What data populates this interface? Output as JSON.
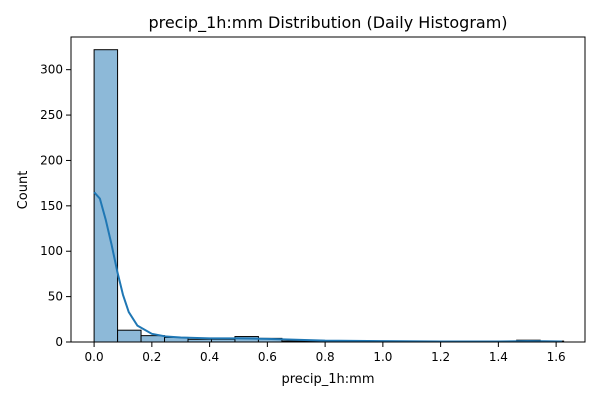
{
  "chart_data": {
    "type": "bar",
    "title": "precip_1h:mm Distribution (Daily Histogram)",
    "xlabel": "precip_1h:mm",
    "ylabel": "Count",
    "xlim": [
      -0.08,
      1.7
    ],
    "ylim": [
      0,
      336
    ],
    "xticks": [
      0.0,
      0.2,
      0.4,
      0.6,
      0.8,
      1.0,
      1.2,
      1.4,
      1.6
    ],
    "xtick_labels": [
      "0.0",
      "0.2",
      "0.4",
      "0.6",
      "0.8",
      "1.0",
      "1.2",
      "1.4",
      "1.6"
    ],
    "yticks": [
      0,
      50,
      100,
      150,
      200,
      250,
      300
    ],
    "ytick_labels": [
      "0",
      "50",
      "100",
      "150",
      "200",
      "250",
      "300"
    ],
    "bin_edges": [
      0.0,
      0.0813,
      0.1626,
      0.2439,
      0.3252,
      0.4065,
      0.4878,
      0.5691,
      0.6504,
      0.7317,
      0.813,
      0.8943,
      0.9756,
      1.0569,
      1.1382,
      1.2195,
      1.3008,
      1.3821,
      1.4634,
      1.5447,
      1.626
    ],
    "counts": [
      322,
      13,
      7,
      5,
      3,
      3,
      6,
      4,
      1,
      1,
      0,
      0,
      0,
      0,
      0,
      0,
      0,
      0,
      2,
      1
    ],
    "kde": {
      "x": [
        0.0,
        0.02,
        0.04,
        0.06,
        0.08,
        0.1,
        0.12,
        0.15,
        0.2,
        0.25,
        0.3,
        0.4,
        0.5,
        0.6,
        0.7,
        0.8,
        1.0,
        1.2,
        1.4,
        1.5,
        1.56,
        1.62
      ],
      "y": [
        165,
        158,
        135,
        108,
        78,
        52,
        33,
        18,
        9,
        6,
        5,
        4,
        4,
        3.5,
        2.5,
        1.5,
        1,
        0.5,
        0.5,
        1,
        0.8,
        0.5
      ]
    },
    "grid": false,
    "colors": {
      "bar_fill": "#8db9d8",
      "bar_edge": "#000000",
      "kde_line": "#1f77b4"
    }
  }
}
